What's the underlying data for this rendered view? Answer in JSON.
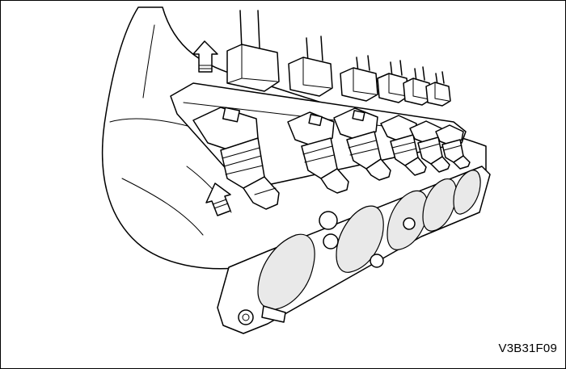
{
  "figure": {
    "code": "V3B31F09"
  }
}
